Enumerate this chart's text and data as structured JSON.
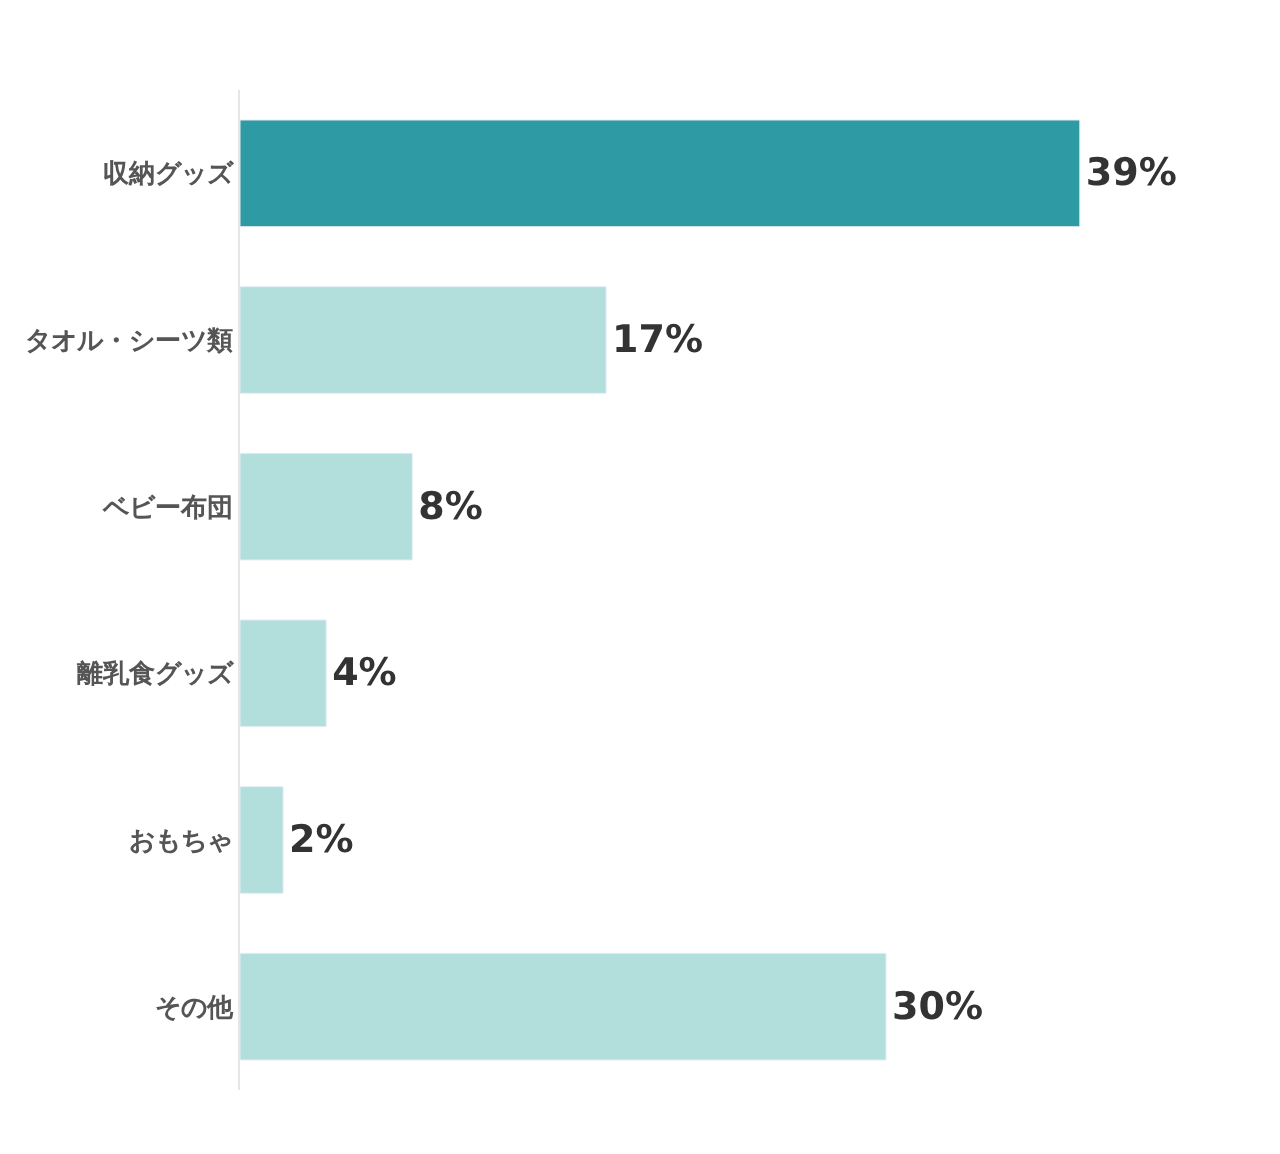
{
  "chart_data": {
    "type": "bar",
    "orientation": "horizontal",
    "categories": [
      "収納グッズ",
      "タオル・シーツ類",
      "ベビー布団",
      "離乳食グッズ",
      "おもちゃ",
      "その他"
    ],
    "values": [
      39,
      17,
      8,
      4,
      2,
      30
    ],
    "colors": [
      "#2e9aa3",
      "#b2dfdc",
      "#b2dfdc",
      "#b2dfdc",
      "#b2dfdc",
      "#b2dfdc"
    ],
    "value_labels": [
      "39%",
      "17%",
      "8%",
      "4%",
      "2%",
      "30%"
    ]
  }
}
